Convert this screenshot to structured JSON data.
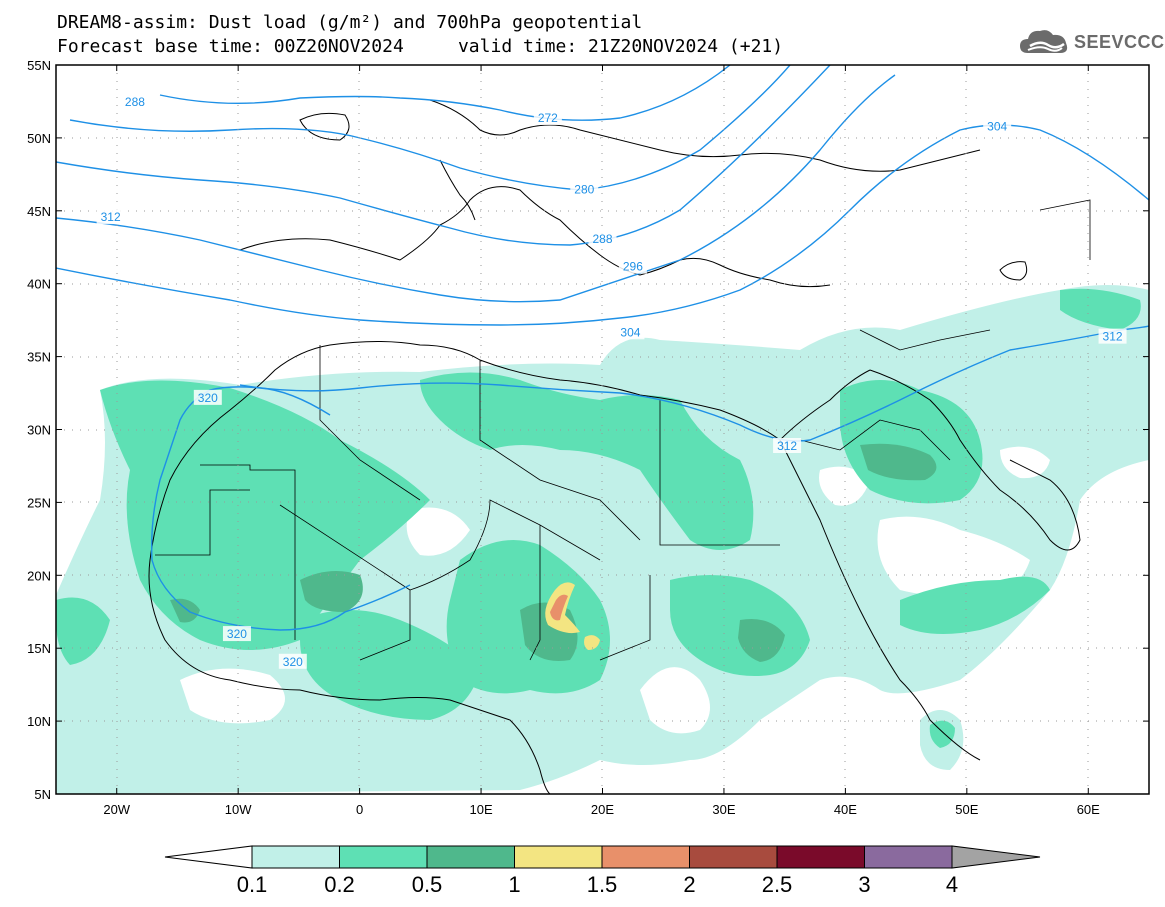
{
  "title": {
    "line1": "DREAM8-assim: Dust load (g/m²) and 700hPa geopotential",
    "line2": "Forecast base time: 00Z20NOV2024     valid time: 21Z20NOV2024 (+21)"
  },
  "logo": {
    "text": "SEEVCCC",
    "icon": "cloud-icon",
    "color": "#6b6b6b"
  },
  "axes": {
    "lon_ticks": [
      {
        "value": -20,
        "label": "20W"
      },
      {
        "value": -10,
        "label": "10W"
      },
      {
        "value": 0,
        "label": "0"
      },
      {
        "value": 10,
        "label": "10E"
      },
      {
        "value": 20,
        "label": "20E"
      },
      {
        "value": 30,
        "label": "30E"
      },
      {
        "value": 40,
        "label": "40E"
      },
      {
        "value": 50,
        "label": "50E"
      },
      {
        "value": 60,
        "label": "60E"
      }
    ],
    "lat_ticks": [
      {
        "value": 55,
        "label": "55N"
      },
      {
        "value": 50,
        "label": "50N"
      },
      {
        "value": 45,
        "label": "45N"
      },
      {
        "value": 40,
        "label": "40N"
      },
      {
        "value": 35,
        "label": "35N"
      },
      {
        "value": 30,
        "label": "30N"
      },
      {
        "value": 25,
        "label": "25N"
      },
      {
        "value": 20,
        "label": "20N"
      },
      {
        "value": 15,
        "label": "15N"
      },
      {
        "value": 10,
        "label": "10N"
      },
      {
        "value": 5,
        "label": "5N"
      }
    ],
    "lon_range": [
      -25,
      65
    ],
    "lat_range": [
      5,
      55
    ]
  },
  "colorbar": {
    "labels": [
      "0.1",
      "0.2",
      "0.5",
      "1",
      "1.5",
      "2",
      "2.5",
      "3",
      "4"
    ],
    "colors": [
      "#c1f0e8",
      "#5ee0b4",
      "#4fb88c",
      "#f3e582",
      "#e8906a",
      "#a84b3e",
      "#7a0a2a",
      "#8a6a9e"
    ],
    "under_color": "#ffffff",
    "over_color": "#a3a3a3"
  },
  "contour_labels": [
    {
      "text": "288",
      "lon": -18.5,
      "lat": 52.4
    },
    {
      "text": "272",
      "lon": 15.5,
      "lat": 51.3
    },
    {
      "text": "304",
      "lon": 52.5,
      "lat": 50.7
    },
    {
      "text": "280",
      "lon": 18.5,
      "lat": 46.4
    },
    {
      "text": "312",
      "lon": -20.5,
      "lat": 44.5
    },
    {
      "text": "288",
      "lon": 20.0,
      "lat": 43.0
    },
    {
      "text": "296",
      "lon": 22.5,
      "lat": 41.1
    },
    {
      "text": "304",
      "lon": 22.3,
      "lat": 36.6
    },
    {
      "text": "312",
      "lon": 62.0,
      "lat": 36.3
    },
    {
      "text": "320",
      "lon": -12.5,
      "lat": 32.1
    },
    {
      "text": "312",
      "lon": 35.2,
      "lat": 28.8
    },
    {
      "text": "320",
      "lon": -10.1,
      "lat": 15.9
    },
    {
      "text": "320",
      "lon": -5.5,
      "lat": 14.0
    }
  ]
}
